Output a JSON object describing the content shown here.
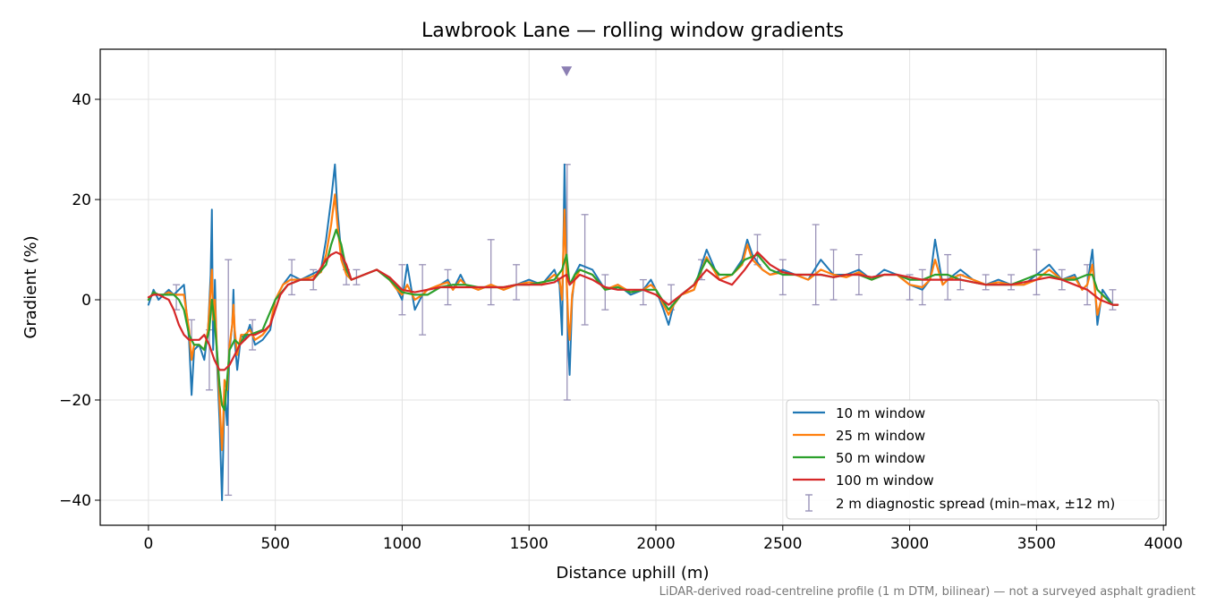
{
  "chart_data": {
    "type": "line",
    "title": "Lawbrook Lane — rolling window gradients",
    "xlabel": "Distance uphill (m)",
    "ylabel": "Gradient (%)",
    "xlim": [
      -190,
      4010
    ],
    "ylim": [
      -45,
      50
    ],
    "xticks": [
      0,
      500,
      1000,
      1500,
      2000,
      2500,
      3000,
      3500,
      4000
    ],
    "yticks": [
      -40,
      -20,
      0,
      20,
      40
    ],
    "grid": true,
    "legend_position": "lower-right",
    "footnote": "LiDAR-derived road-centreline profile (1 m DTM, bilinear) — not a surveyed asphalt gradient",
    "marker": {
      "x": 1648,
      "y": 45.5,
      "shape": "triangle-down",
      "color": "#8c7fb3"
    },
    "series": [
      {
        "name": "10 m window",
        "color": "#1f77b4",
        "x": [
          0,
          20,
          40,
          60,
          80,
          100,
          120,
          140,
          160,
          170,
          180,
          200,
          220,
          235,
          245,
          250,
          255,
          262,
          270,
          280,
          290,
          295,
          300,
          310,
          320,
          330,
          335,
          340,
          350,
          365,
          380,
          400,
          420,
          450,
          480,
          500,
          530,
          560,
          600,
          640,
          680,
          700,
          720,
          735,
          745,
          760,
          780,
          800,
          850,
          900,
          950,
          980,
          1000,
          1020,
          1050,
          1080,
          1100,
          1150,
          1180,
          1200,
          1230,
          1250,
          1300,
          1350,
          1400,
          1450,
          1500,
          1550,
          1600,
          1620,
          1630,
          1640,
          1648,
          1655,
          1660,
          1670,
          1680,
          1700,
          1750,
          1800,
          1850,
          1900,
          1950,
          1980,
          2000,
          2030,
          2050,
          2070,
          2100,
          2150,
          2180,
          2200,
          2250,
          2300,
          2340,
          2360,
          2380,
          2420,
          2450,
          2500,
          2550,
          2600,
          2650,
          2700,
          2750,
          2800,
          2850,
          2900,
          2950,
          3000,
          3050,
          3080,
          3100,
          3130,
          3150,
          3200,
          3250,
          3300,
          3350,
          3400,
          3450,
          3500,
          3550,
          3600,
          3650,
          3680,
          3700,
          3720,
          3740,
          3760,
          3800,
          3820
        ],
        "y": [
          -1,
          2,
          0,
          1,
          2,
          1,
          2,
          3,
          -8,
          -19,
          -10,
          -9,
          -12,
          -6,
          5,
          18,
          -10,
          4,
          -12,
          -24,
          -40,
          -30,
          -18,
          -25,
          -10,
          -5,
          2,
          -8,
          -14,
          -7,
          -8,
          -5,
          -9,
          -8,
          -6,
          0,
          3,
          5,
          4,
          5,
          6,
          12,
          20,
          27,
          18,
          9,
          6,
          4,
          5,
          6,
          4,
          2,
          0,
          7,
          -2,
          1,
          2,
          3,
          4,
          2,
          5,
          3,
          2,
          3,
          2,
          3,
          4,
          3,
          6,
          3,
          -7,
          27,
          5,
          -10,
          -15,
          0,
          5,
          7,
          6,
          2,
          3,
          1,
          2,
          4,
          2,
          -2,
          -5,
          -1,
          1,
          2,
          7,
          10,
          4,
          5,
          8,
          12,
          9,
          6,
          5,
          6,
          5,
          4,
          8,
          5,
          5,
          6,
          4,
          6,
          5,
          3,
          2,
          4,
          12,
          3,
          4,
          6,
          4,
          3,
          4,
          3,
          3,
          5,
          7,
          4,
          5,
          2,
          3,
          10,
          -5,
          2,
          -1,
          -1
        ]
      },
      {
        "name": "25 m window",
        "color": "#ff7f0e",
        "x": [
          0,
          20,
          40,
          60,
          80,
          100,
          120,
          140,
          160,
          170,
          180,
          200,
          220,
          235,
          245,
          250,
          255,
          262,
          270,
          280,
          290,
          295,
          300,
          310,
          320,
          330,
          335,
          340,
          350,
          365,
          380,
          400,
          420,
          450,
          480,
          500,
          530,
          560,
          600,
          640,
          680,
          700,
          720,
          735,
          745,
          760,
          780,
          800,
          850,
          900,
          950,
          980,
          1000,
          1020,
          1050,
          1080,
          1100,
          1150,
          1180,
          1200,
          1230,
          1250,
          1300,
          1350,
          1400,
          1450,
          1500,
          1550,
          1600,
          1620,
          1630,
          1640,
          1648,
          1655,
          1660,
          1670,
          1680,
          1700,
          1750,
          1800,
          1850,
          1900,
          1950,
          1980,
          2000,
          2030,
          2050,
          2070,
          2100,
          2150,
          2180,
          2200,
          2250,
          2300,
          2340,
          2360,
          2380,
          2420,
          2450,
          2500,
          2550,
          2600,
          2650,
          2700,
          2750,
          2800,
          2850,
          2900,
          2950,
          3000,
          3050,
          3080,
          3100,
          3130,
          3150,
          3200,
          3250,
          3300,
          3350,
          3400,
          3450,
          3500,
          3550,
          3600,
          3650,
          3680,
          3700,
          3720,
          3740,
          3760,
          3800,
          3820
        ],
        "y": [
          0,
          1.5,
          1,
          1,
          1.5,
          1,
          1,
          1,
          -6,
          -12,
          -9,
          -9,
          -10,
          -6,
          2,
          6,
          -4,
          0,
          -10,
          -20,
          -30,
          -24,
          -16,
          -18,
          -9,
          -5,
          -1,
          -6,
          -11,
          -7,
          -7,
          -6,
          -8,
          -7,
          -5,
          0,
          3,
          4,
          4,
          4.5,
          5.5,
          9,
          15,
          21,
          15,
          8,
          5,
          4,
          5,
          6,
          4,
          2,
          1,
          3,
          0,
          1,
          2,
          3,
          3.5,
          2,
          4,
          3,
          2,
          3,
          2,
          3,
          3.5,
          3,
          5,
          4,
          0,
          18,
          4,
          -5,
          -8,
          1,
          4,
          6,
          5,
          2,
          3,
          1.5,
          2,
          3,
          2,
          -1,
          -3,
          -1,
          1,
          2,
          6,
          8.5,
          4,
          5,
          7,
          11,
          8,
          6,
          5,
          5.5,
          5,
          4,
          6,
          5,
          4.5,
          5.5,
          4,
          5,
          5,
          3,
          2.5,
          4,
          8,
          3,
          4,
          5,
          4,
          3,
          3.5,
          3,
          3,
          4,
          6,
          4,
          4.5,
          2,
          3,
          7,
          -3,
          1,
          -1,
          -1
        ]
      },
      {
        "name": "50 m window",
        "color": "#2ca02c",
        "x": [
          0,
          20,
          40,
          60,
          80,
          100,
          120,
          140,
          160,
          180,
          200,
          220,
          240,
          250,
          260,
          270,
          280,
          290,
          300,
          310,
          320,
          340,
          360,
          380,
          400,
          450,
          500,
          550,
          600,
          650,
          700,
          720,
          740,
          760,
          780,
          800,
          850,
          900,
          950,
          1000,
          1050,
          1100,
          1150,
          1200,
          1250,
          1300,
          1350,
          1400,
          1450,
          1500,
          1550,
          1600,
          1630,
          1648,
          1660,
          1680,
          1700,
          1750,
          1800,
          1850,
          1900,
          1950,
          2000,
          2050,
          2100,
          2150,
          2200,
          2250,
          2300,
          2350,
          2400,
          2450,
          2500,
          2550,
          2600,
          2650,
          2700,
          2750,
          2800,
          2850,
          2900,
          2950,
          3000,
          3050,
          3100,
          3150,
          3200,
          3250,
          3300,
          3350,
          3400,
          3450,
          3500,
          3550,
          3600,
          3650,
          3700,
          3720,
          3740,
          3760,
          3800,
          3820
        ],
        "y": [
          0,
          1.5,
          1,
          1,
          1,
          1,
          0,
          -2,
          -7,
          -9,
          -9,
          -10,
          -6,
          0,
          -4,
          -10,
          -17,
          -21,
          -22,
          -16,
          -10,
          -8,
          -9,
          -7,
          -7,
          -6,
          0,
          3,
          4,
          4,
          7,
          11,
          14,
          11,
          6,
          4,
          5,
          6,
          4,
          1.5,
          1,
          1,
          2.5,
          3,
          3,
          2.5,
          2.5,
          2.5,
          3,
          3,
          3.5,
          4,
          6,
          9,
          3,
          5,
          6,
          5,
          2,
          2.5,
          1.5,
          2,
          2,
          -2,
          1,
          3,
          8,
          5,
          5,
          8,
          9,
          6,
          5,
          5,
          5,
          5,
          4.5,
          5,
          5,
          4,
          5,
          5,
          4,
          4,
          5,
          5,
          4,
          3.5,
          3,
          3,
          3,
          4,
          5,
          5,
          4,
          4,
          5,
          5,
          2,
          1,
          -1,
          -1
        ]
      },
      {
        "name": "100 m window",
        "color": "#d62728",
        "x": [
          0,
          20,
          40,
          60,
          80,
          100,
          120,
          140,
          160,
          180,
          200,
          220,
          240,
          260,
          280,
          300,
          320,
          340,
          360,
          380,
          400,
          420,
          440,
          460,
          480,
          500,
          520,
          550,
          600,
          650,
          700,
          720,
          740,
          760,
          780,
          800,
          850,
          900,
          950,
          1000,
          1050,
          1100,
          1150,
          1200,
          1250,
          1300,
          1350,
          1400,
          1450,
          1500,
          1550,
          1600,
          1630,
          1648,
          1660,
          1680,
          1700,
          1750,
          1800,
          1850,
          1900,
          1950,
          2000,
          2050,
          2100,
          2150,
          2200,
          2250,
          2300,
          2350,
          2400,
          2450,
          2500,
          2550,
          2600,
          2650,
          2700,
          2750,
          2800,
          2850,
          2900,
          2950,
          3000,
          3050,
          3100,
          3150,
          3200,
          3250,
          3300,
          3350,
          3400,
          3450,
          3500,
          3550,
          3600,
          3650,
          3700,
          3750,
          3800,
          3820
        ],
        "y": [
          0.5,
          1,
          1,
          0.5,
          0,
          -2,
          -5,
          -7,
          -8,
          -8,
          -8,
          -7,
          -9,
          -12,
          -14,
          -14,
          -13,
          -11,
          -9,
          -8,
          -7,
          -7,
          -6.5,
          -6,
          -5,
          -2,
          1,
          3,
          4,
          4,
          8,
          9,
          9.5,
          9,
          7,
          4,
          5,
          6,
          4.5,
          2,
          1.5,
          2,
          2.5,
          2.5,
          2.5,
          2.5,
          2.5,
          2.5,
          3,
          3,
          3,
          3.5,
          4.5,
          5,
          3,
          4,
          5,
          4,
          2.5,
          2,
          2,
          2,
          1,
          -1,
          1,
          3,
          6,
          4,
          3,
          6,
          9.5,
          7,
          5.5,
          5,
          5,
          5,
          4.5,
          5,
          5,
          4.5,
          5,
          5,
          4.5,
          4,
          4,
          4,
          4,
          3.5,
          3,
          3,
          3,
          3.5,
          4,
          4.5,
          4,
          3,
          2,
          0,
          -1,
          -1
        ]
      }
    ],
    "diagnostic_spread": {
      "name": "2 m diagnostic spread (min–max, ±12 m)",
      "color": "#9a93b8",
      "x": [
        110,
        170,
        240,
        315,
        410,
        565,
        650,
        780,
        820,
        1000,
        1080,
        1180,
        1350,
        1450,
        1650,
        1720,
        1800,
        1950,
        2060,
        2180,
        2400,
        2500,
        2630,
        2700,
        2800,
        3000,
        3050,
        3150,
        3200,
        3300,
        3400,
        3500,
        3600,
        3700,
        3800
      ],
      "min": [
        -2,
        -8,
        -18,
        -39,
        -10,
        1,
        2,
        3,
        3,
        -3,
        -7,
        -1,
        -1,
        0,
        -20,
        -5,
        -2,
        -1,
        -2,
        4,
        7,
        1,
        -1,
        0,
        1,
        0,
        -1,
        0,
        2,
        2,
        2,
        1,
        2,
        -1,
        -2
      ],
      "max": [
        3,
        -4,
        -6,
        8,
        -4,
        8,
        6,
        6,
        6,
        7,
        7,
        6,
        12,
        7,
        27,
        17,
        5,
        4,
        3,
        8,
        13,
        8,
        15,
        10,
        9,
        5,
        6,
        9,
        5,
        5,
        5,
        10,
        6,
        7,
        2
      ]
    }
  }
}
